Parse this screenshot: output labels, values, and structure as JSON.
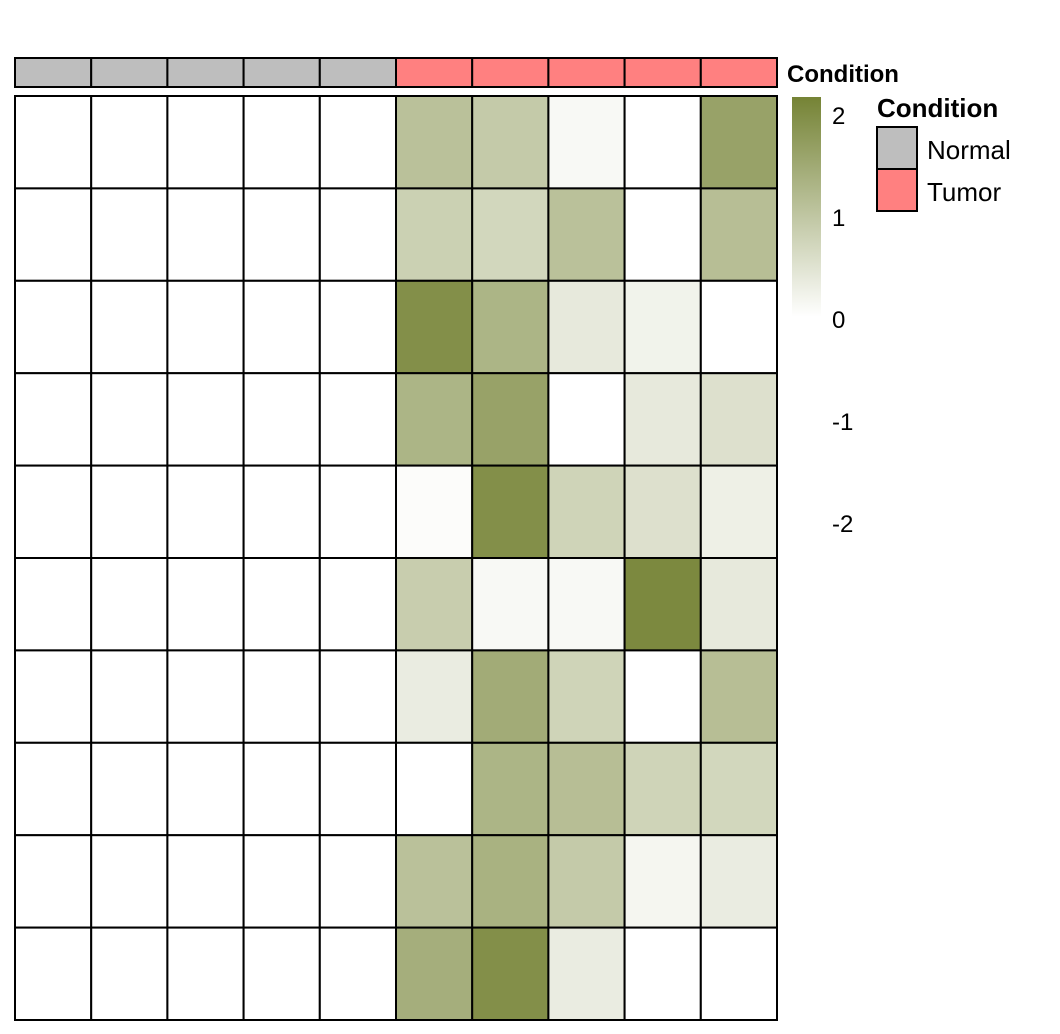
{
  "chart_data": {
    "type": "heatmap",
    "annotation": {
      "name": "Condition",
      "values": [
        "Normal",
        "Normal",
        "Normal",
        "Normal",
        "Normal",
        "Tumor",
        "Tumor",
        "Tumor",
        "Tumor",
        "Tumor"
      ],
      "colors": {
        "Normal": "#bebebe",
        "Tumor": "#ff8080"
      }
    },
    "legend": {
      "title": "Condition",
      "items": [
        {
          "label": "Normal",
          "color": "#bebebe"
        },
        {
          "label": "Tumor",
          "color": "#ff8080"
        }
      ]
    },
    "colorbar": {
      "ticks": [
        "2",
        "1",
        "0",
        "-1",
        "-2"
      ],
      "range": [
        -2,
        2
      ],
      "colors": {
        "low": "#ffffff",
        "mid": "#ffffff",
        "high": "#758335"
      }
    },
    "rows": 10,
    "columns": 10,
    "values": [
      [
        0,
        0,
        0,
        0,
        0,
        1.0,
        0.85,
        0.1,
        0,
        1.5
      ],
      [
        0,
        0,
        0,
        0,
        0,
        0.75,
        0.65,
        1.0,
        0,
        1.05
      ],
      [
        0,
        0,
        0,
        0,
        0,
        1.8,
        1.2,
        0.35,
        0.2,
        0
      ],
      [
        0,
        0,
        0,
        0,
        0,
        1.2,
        1.5,
        0,
        0.35,
        0.5
      ],
      [
        0,
        0,
        0,
        0,
        0,
        0.05,
        1.8,
        0.7,
        0.5,
        0.25
      ],
      [
        0,
        0,
        0,
        0,
        0,
        0.8,
        0.1,
        0.1,
        1.9,
        0.35
      ],
      [
        0,
        0,
        0,
        0,
        0,
        0.3,
        1.35,
        0.7,
        0,
        1.05
      ],
      [
        0,
        0,
        0,
        0,
        0,
        0,
        1.2,
        1.05,
        0.7,
        0.65
      ],
      [
        0,
        0,
        0,
        0,
        0,
        1.0,
        1.25,
        0.85,
        0.15,
        0.3
      ],
      [
        0,
        0,
        0,
        0,
        0,
        1.3,
        1.8,
        0.3,
        0,
        0
      ]
    ]
  }
}
